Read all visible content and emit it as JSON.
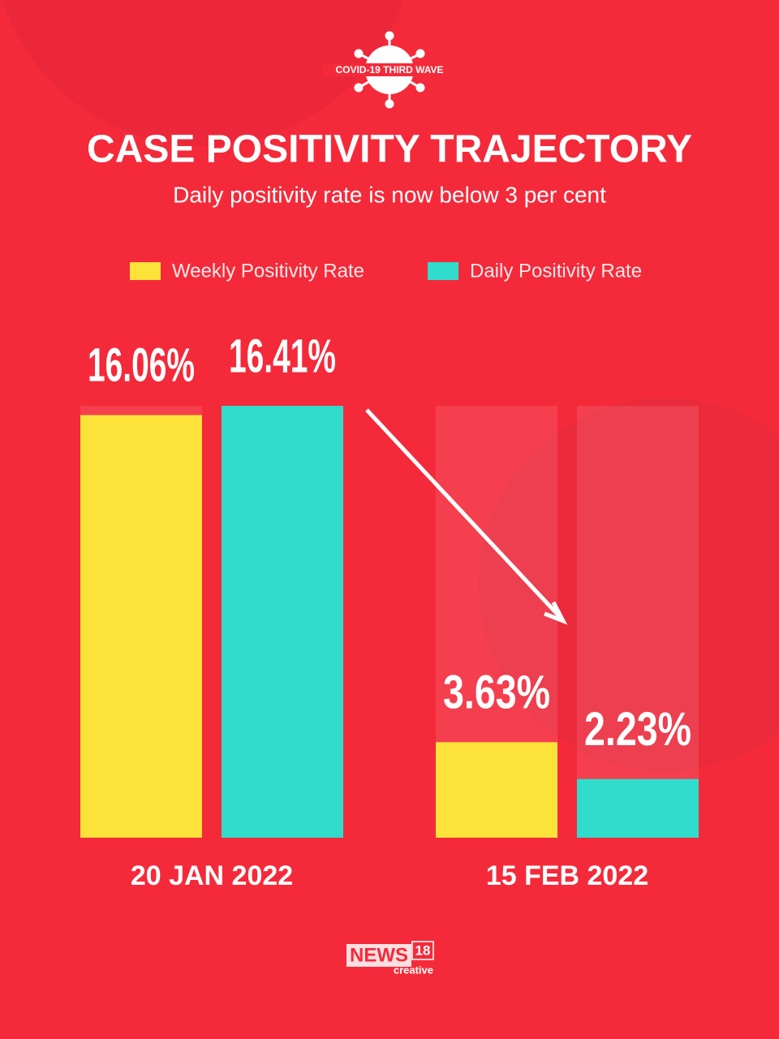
{
  "header": {
    "badge": "COVID-19 THIRD WAVE"
  },
  "chart_data": {
    "type": "bar",
    "title": "CASE POSITIVITY TRAJECTORY",
    "subtitle": "Daily positivity rate is now below 3 per cent",
    "categories": [
      "20 JAN 2022",
      "15 FEB 2022"
    ],
    "series": [
      {
        "name": "Weekly Positivity Rate",
        "color": "#fde23a",
        "values": [
          16.06,
          3.63
        ],
        "value_labels": [
          "16.06%",
          "3.63%"
        ]
      },
      {
        "name": "Daily Positivity Rate",
        "color": "#2fdccc",
        "values": [
          16.41,
          2.23
        ],
        "value_labels": [
          "16.41%",
          "2.23%"
        ]
      }
    ]
  },
  "footer": {
    "logo": "NEWS",
    "logo_number": "18",
    "logo_sub": "creative"
  }
}
